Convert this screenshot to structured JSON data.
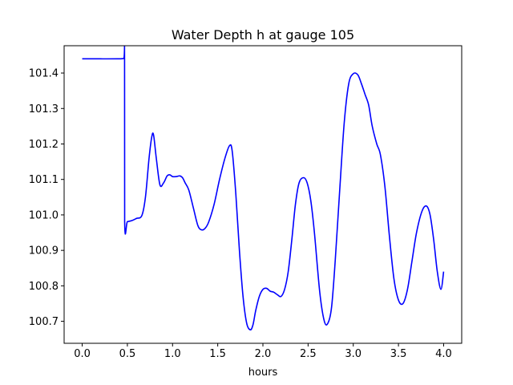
{
  "chart_data": {
    "type": "line",
    "title": "Water Depth h at gauge 105",
    "xlabel": "hours",
    "ylabel": "",
    "xlim": [
      -0.2,
      4.2
    ],
    "ylim": [
      100.638,
      101.477
    ],
    "xticks": [
      0.0,
      0.5,
      1.0,
      1.5,
      2.0,
      2.5,
      3.0,
      3.5,
      4.0
    ],
    "xtick_labels": [
      "0.0",
      "0.5",
      "1.0",
      "1.5",
      "2.0",
      "2.5",
      "3.0",
      "3.5",
      "4.0"
    ],
    "yticks": [
      100.7,
      100.8,
      100.9,
      101.0,
      101.1,
      101.2,
      101.3,
      101.4
    ],
    "ytick_labels": [
      "100.7",
      "100.8",
      "100.9",
      "101.0",
      "101.1",
      "101.2",
      "101.3",
      "101.4"
    ],
    "grid": false,
    "series": [
      {
        "color": "#0000ff",
        "x": [
          0.0,
          0.2,
          0.4,
          0.46,
          0.469,
          0.47,
          0.5,
          0.55,
          0.6,
          0.66,
          0.7,
          0.74,
          0.77,
          0.79,
          0.82,
          0.86,
          0.9,
          0.94,
          0.97,
          1.0,
          1.04,
          1.08,
          1.11,
          1.14,
          1.18,
          1.23,
          1.28,
          1.32,
          1.36,
          1.4,
          1.46,
          1.52,
          1.58,
          1.63,
          1.66,
          1.7,
          1.74,
          1.78,
          1.82,
          1.86,
          1.89,
          1.92,
          1.96,
          2.0,
          2.04,
          2.08,
          2.12,
          2.16,
          2.2,
          2.24,
          2.28,
          2.32,
          2.36,
          2.4,
          2.45,
          2.49,
          2.53,
          2.57,
          2.63,
          2.68,
          2.72,
          2.76,
          2.8,
          2.85,
          2.9,
          2.95,
          3.0,
          3.05,
          3.09,
          3.13,
          3.17,
          3.21,
          3.26,
          3.3,
          3.35,
          3.4,
          3.45,
          3.5,
          3.55,
          3.6,
          3.65,
          3.7,
          3.76,
          3.81,
          3.85,
          3.89,
          3.93,
          3.97,
          4.0
        ],
        "y": [
          101.44,
          101.44,
          101.44,
          101.441,
          101.441,
          100.98,
          100.981,
          100.984,
          100.99,
          100.998,
          101.05,
          101.16,
          101.22,
          101.225,
          101.16,
          101.085,
          101.09,
          101.11,
          101.113,
          101.108,
          101.108,
          101.11,
          101.105,
          101.09,
          101.07,
          101.02,
          100.97,
          100.958,
          100.962,
          100.98,
          101.03,
          101.1,
          101.16,
          101.195,
          101.18,
          101.06,
          100.9,
          100.77,
          100.695,
          100.676,
          100.69,
          100.73,
          100.77,
          100.79,
          100.793,
          100.785,
          100.782,
          100.775,
          100.77,
          100.79,
          100.84,
          100.93,
          101.03,
          101.09,
          101.105,
          101.09,
          101.04,
          100.95,
          100.78,
          100.7,
          100.695,
          100.74,
          100.87,
          101.07,
          101.26,
          101.37,
          101.398,
          101.395,
          101.37,
          101.34,
          101.31,
          101.25,
          101.2,
          101.17,
          101.08,
          100.94,
          100.82,
          100.76,
          100.75,
          100.79,
          100.87,
          100.95,
          101.01,
          101.025,
          101.0,
          100.93,
          100.84,
          100.79,
          100.84
        ]
      }
    ]
  }
}
